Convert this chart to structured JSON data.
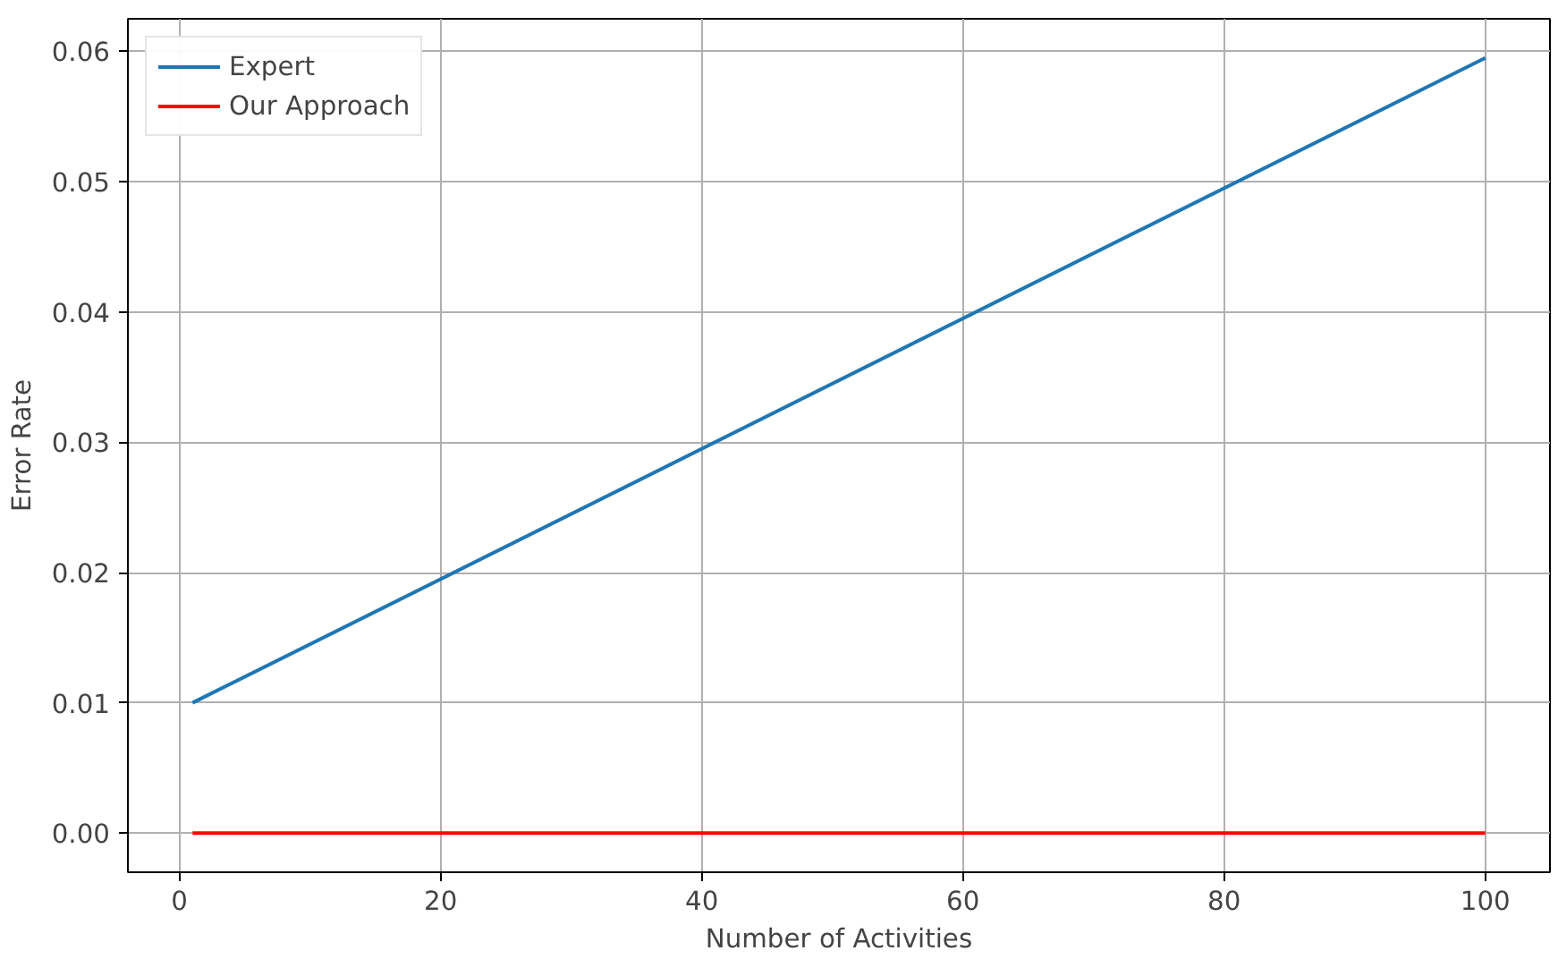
{
  "chart_data": {
    "type": "line",
    "xlabel": "Number of Activities",
    "ylabel": "Error Rate",
    "x": [
      1,
      100
    ],
    "series": [
      {
        "name": "Expert",
        "color": "#1f77b4",
        "values": [
          0.01,
          0.0595
        ]
      },
      {
        "name": "Our Approach",
        "color": "#ff0000",
        "values": [
          0.0,
          0.0
        ]
      }
    ],
    "xlim": [
      -3.95,
      104.95
    ],
    "ylim": [
      -0.003,
      0.0625
    ],
    "xticks": [
      0,
      20,
      40,
      60,
      80,
      100
    ],
    "yticks": [
      {
        "value": 0,
        "label": "0.00"
      },
      {
        "value": 0.01,
        "label": "0.01"
      },
      {
        "value": 0.02,
        "label": "0.02"
      },
      {
        "value": 0.03,
        "label": "0.03"
      },
      {
        "value": 0.04,
        "label": "0.04"
      },
      {
        "value": 0.05,
        "label": "0.05"
      },
      {
        "value": 0.06,
        "label": "0.06"
      }
    ],
    "grid": true,
    "legend": "top left",
    "line_style": "solid",
    "marker": "none"
  }
}
